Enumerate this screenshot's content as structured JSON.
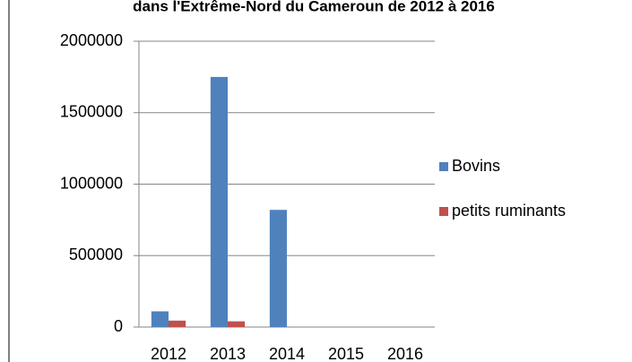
{
  "chart_data": {
    "type": "bar",
    "title": "dans l'Extrême-Nord du Cameroun de 2012 à 2016",
    "categories": [
      "2012",
      "2013",
      "2014",
      "2015",
      "2016"
    ],
    "series": [
      {
        "name": "Bovins",
        "color": "#4f81bd",
        "values": [
          110000,
          1750000,
          820000,
          0,
          0
        ]
      },
      {
        "name": "petits ruminants",
        "color": "#c0504d",
        "values": [
          45000,
          40000,
          0,
          0,
          0
        ]
      }
    ],
    "ylim": [
      0,
      2000000
    ],
    "yticks": [
      0,
      500000,
      1000000,
      1500000,
      2000000
    ],
    "grid": true,
    "legend": "right"
  }
}
